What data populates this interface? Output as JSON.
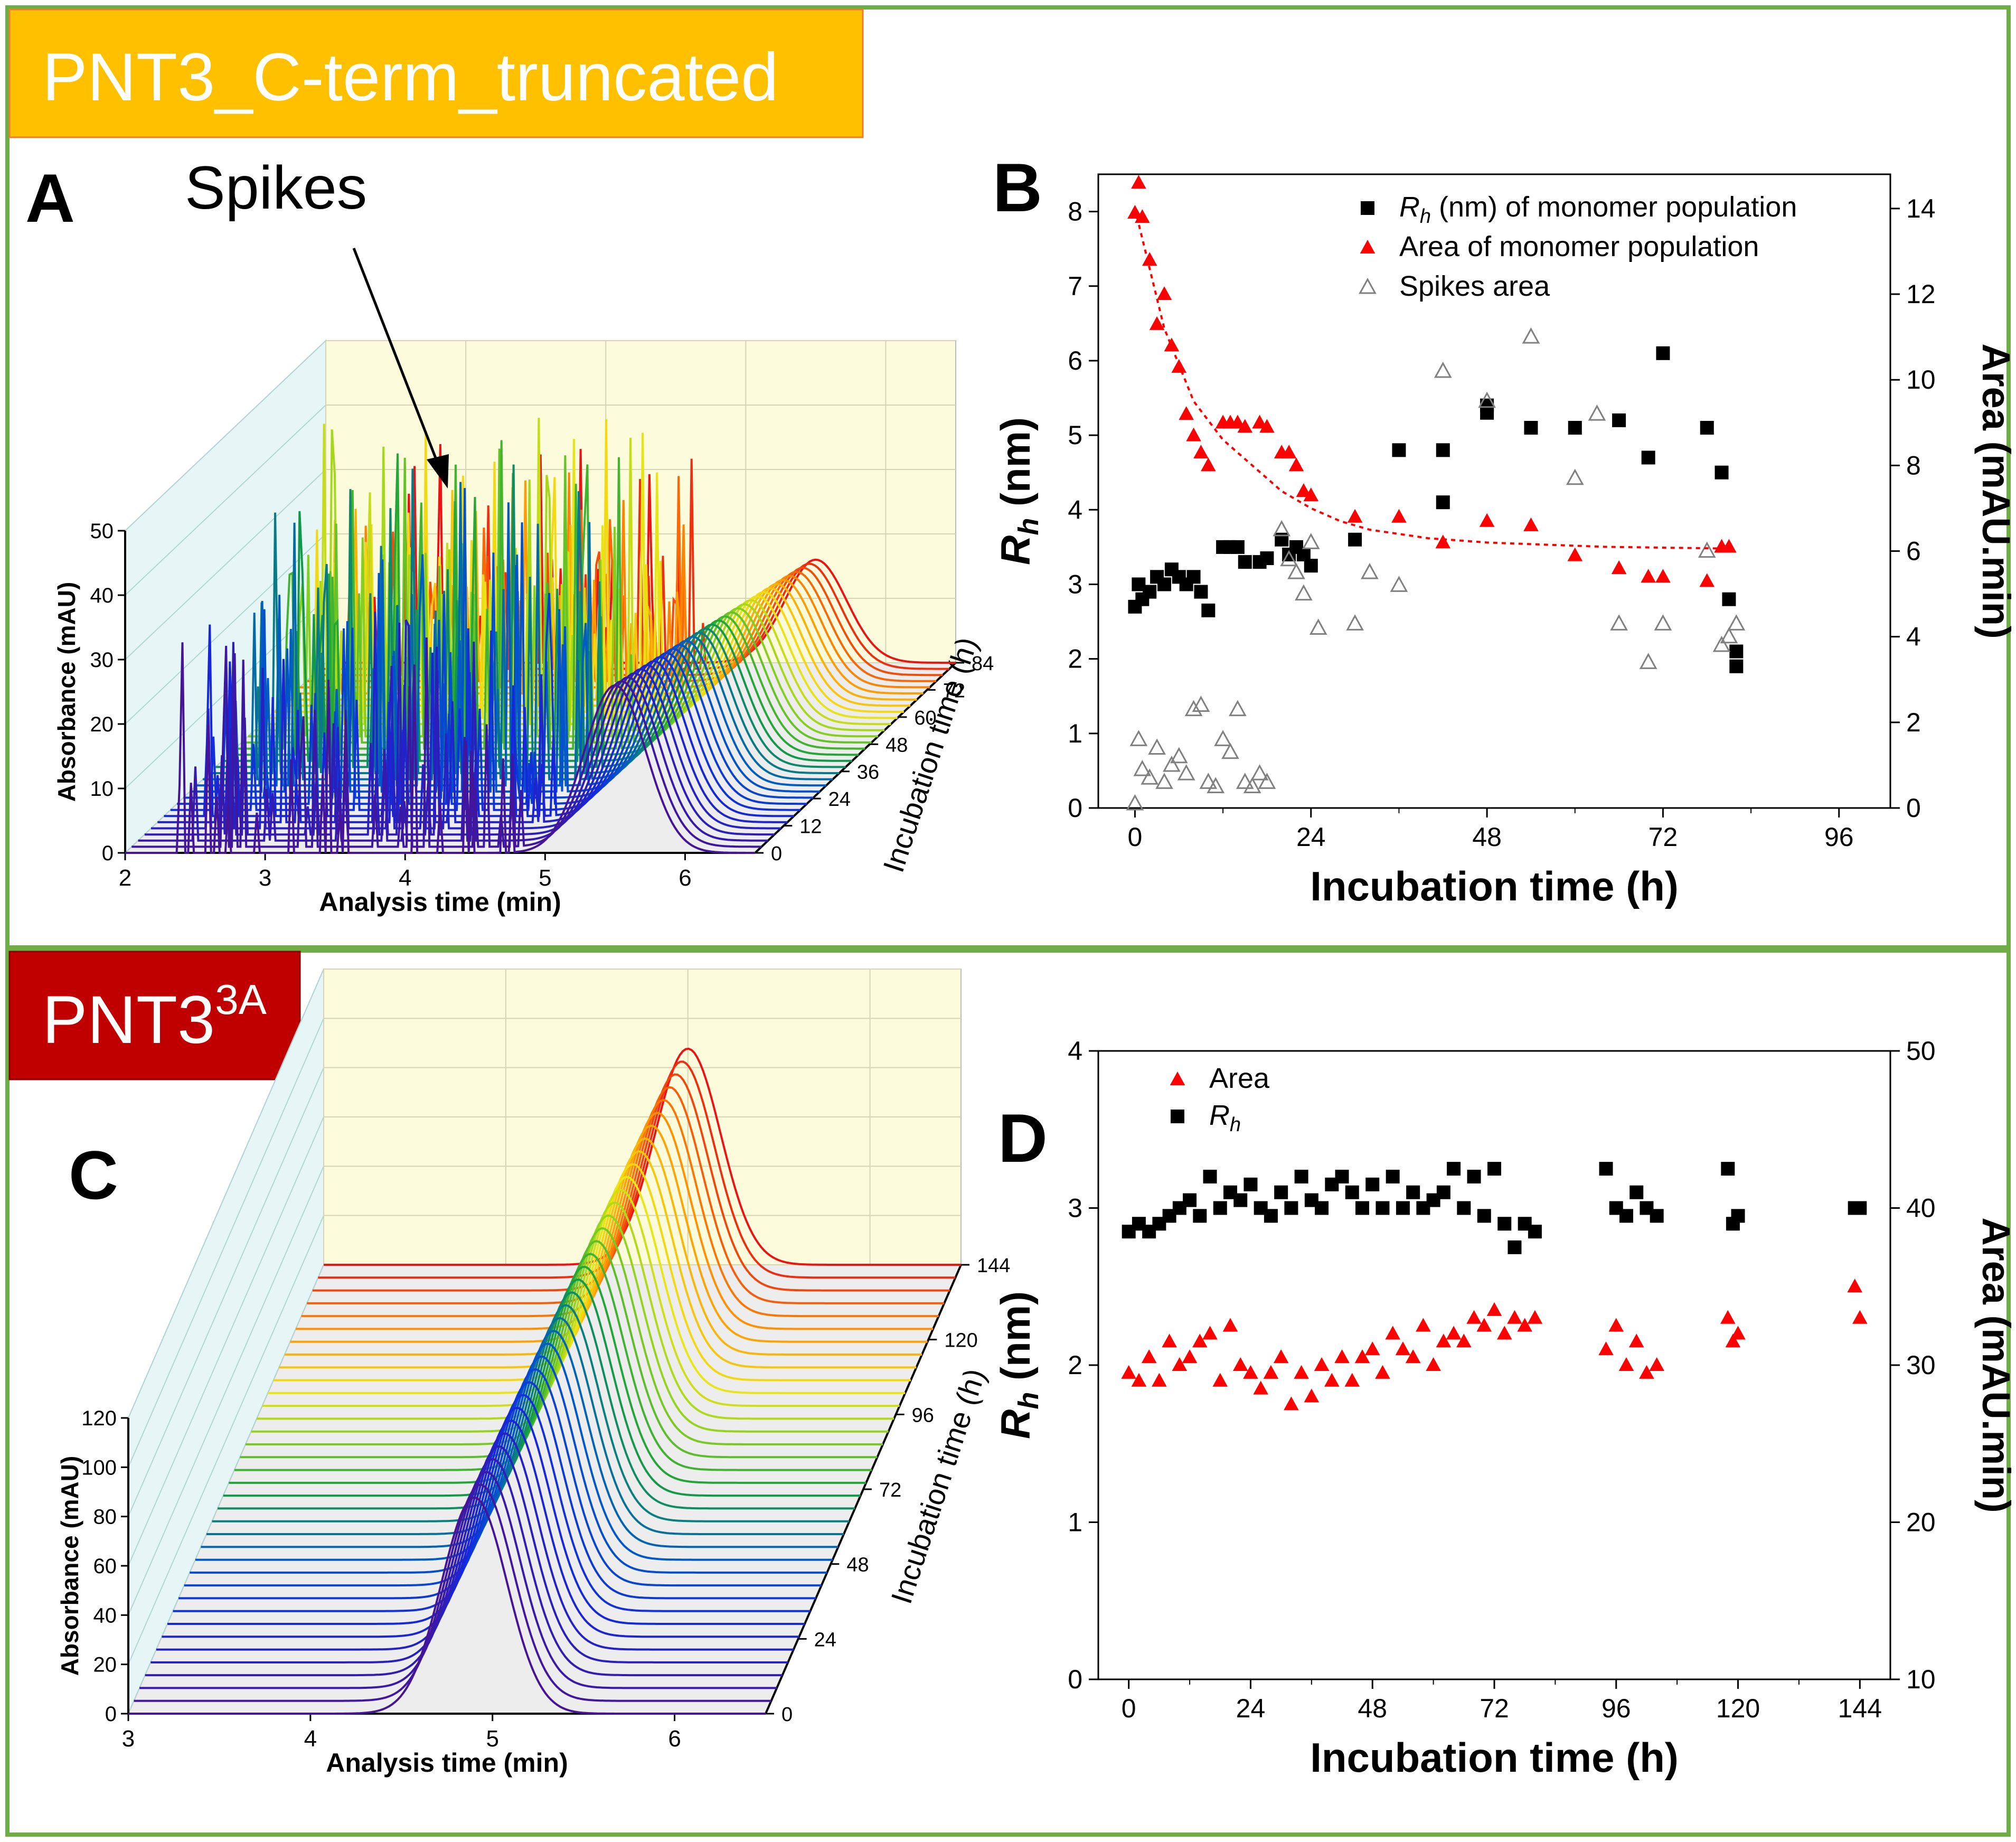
{
  "panels": {
    "top_label": "PNT3_C-term_truncated",
    "bottom_label_main": "PNT3",
    "bottom_label_sup": "3A",
    "colors": {
      "top_label_bg": "#FFC000",
      "bottom_label_bg": "#C00000",
      "frame": "#70AD47",
      "top_label_text": "#ffffff",
      "bottom_label_text": "#ffffff"
    }
  },
  "chart_data": [
    {
      "panel": "A",
      "type": "waterfall",
      "letter": "A",
      "annotation": "Spikes",
      "xlabel": "Analysis time (min)",
      "ylabel": "Absorbance (mAU)",
      "zlabel": "Incubation time (h)",
      "x_ticks": [
        "2",
        "3",
        "4",
        "5",
        "6"
      ],
      "y_ticks": [
        "0",
        "10",
        "20",
        "30",
        "40",
        "50"
      ],
      "z_ticks": [
        "0",
        "12",
        "24",
        "36",
        "48",
        "60",
        "72",
        "84"
      ],
      "xlim": [
        2,
        6.5
      ],
      "ylim": [
        0,
        50
      ],
      "zlim": [
        0,
        84
      ],
      "n_traces": 32,
      "peak_x_min": 5.5,
      "peak_height_mAU": 26,
      "peak_height_late_mAU": 16
    },
    {
      "panel": "B",
      "type": "scatter",
      "letter": "B",
      "xlabel": "Incubation time (h)",
      "ylabel": "R_h (nm)",
      "ylabel_main": "R",
      "ylabel_sub": "h",
      "ylabel_unit": " (nm)",
      "y2label": "Area (mAU.min)",
      "x_ticks": [
        "0",
        "24",
        "48",
        "72",
        "96"
      ],
      "y_ticks": [
        "0",
        "1",
        "2",
        "3",
        "4",
        "5",
        "6",
        "7",
        "8"
      ],
      "y2_ticks": [
        "0",
        "2",
        "4",
        "6",
        "8",
        "10",
        "12",
        "14"
      ],
      "xlim": [
        -5,
        103
      ],
      "ylim": [
        0,
        8.5
      ],
      "y2lim": [
        0,
        14.8
      ],
      "legend": [
        {
          "prefix": "R",
          "sub": "h",
          "suffix": " (nm) of monomer population",
          "marker": "square",
          "color": "#000000"
        },
        {
          "prefix": "Area of monomer population",
          "sub": "",
          "suffix": "",
          "marker": "triangle",
          "color": "#FF0000"
        },
        {
          "prefix": "Spikes area",
          "sub": "",
          "suffix": "",
          "marker": "triangle-open",
          "color": "#808080"
        }
      ],
      "series": [
        {
          "name": "Rh (nm) of monomer population",
          "axis": "left",
          "color": "#000000",
          "marker": "square",
          "x": [
            0,
            0.5,
            1,
            2,
            3,
            4,
            5,
            6,
            7,
            8,
            9,
            10,
            12,
            13,
            14,
            15,
            17,
            18,
            20,
            21,
            22,
            23,
            24,
            30,
            36,
            42,
            42,
            48,
            48,
            54,
            60,
            66,
            70,
            72,
            78,
            80,
            81,
            82,
            82
          ],
          "y": [
            2.7,
            3.0,
            2.8,
            2.9,
            3.1,
            3.0,
            3.2,
            3.1,
            3.0,
            3.1,
            2.9,
            2.65,
            3.5,
            3.5,
            3.5,
            3.3,
            3.3,
            3.35,
            3.6,
            3.4,
            3.5,
            3.4,
            3.25,
            3.6,
            4.8,
            4.1,
            4.8,
            5.4,
            5.3,
            5.1,
            5.1,
            5.2,
            4.7,
            6.1,
            5.1,
            4.5,
            2.8,
            1.9,
            2.1
          ]
        },
        {
          "name": "Area of monomer population",
          "axis": "right",
          "color": "#FF0000",
          "marker": "triangle",
          "x": [
            0,
            0.5,
            1,
            2,
            3,
            4,
            5,
            6,
            7,
            8,
            9,
            10,
            12,
            13,
            14,
            15,
            17,
            18,
            20,
            21,
            22,
            23,
            24,
            30,
            36,
            42,
            48,
            54,
            60,
            66,
            70,
            72,
            78,
            80,
            81
          ],
          "y": [
            13.9,
            14.6,
            13.8,
            12.8,
            11.3,
            12.0,
            10.8,
            10.3,
            9.2,
            8.7,
            8.3,
            8.0,
            9.0,
            9.0,
            9.0,
            8.9,
            9.0,
            8.9,
            8.3,
            8.3,
            8.0,
            7.4,
            7.3,
            6.8,
            6.8,
            6.2,
            6.7,
            6.6,
            5.9,
            5.6,
            5.4,
            5.4,
            5.3,
            6.1,
            6.1
          ]
        },
        {
          "name": "Spikes area",
          "axis": "right",
          "color": "#808080",
          "marker": "triangle-open",
          "x": [
            0,
            0.5,
            1,
            2,
            3,
            4,
            5,
            6,
            7,
            8,
            9,
            10,
            11,
            12,
            13,
            14,
            15,
            16,
            17,
            18,
            20,
            21,
            22,
            23,
            24,
            25,
            30,
            32,
            36,
            42,
            48,
            54,
            60,
            63,
            66,
            70,
            72,
            78,
            80,
            81,
            82
          ],
          "y": [
            0.1,
            1.6,
            0.9,
            0.7,
            1.4,
            0.6,
            1.0,
            1.2,
            0.8,
            2.3,
            2.4,
            0.6,
            0.5,
            1.6,
            1.3,
            2.3,
            0.6,
            0.5,
            0.8,
            0.6,
            6.5,
            5.8,
            5.5,
            5.0,
            6.2,
            4.2,
            4.3,
            5.5,
            5.2,
            10.2,
            9.5,
            11.0,
            7.7,
            9.2,
            4.3,
            3.4,
            4.3,
            6.0,
            3.8,
            4.0,
            4.3
          ]
        },
        {
          "name": "Fit (dotted)",
          "axis": "right",
          "color": "#FF0000",
          "marker": "line",
          "x": [
            0,
            4,
            8,
            12,
            16,
            20,
            24,
            28,
            32,
            36,
            40,
            44,
            48,
            56,
            64,
            72,
            80,
            82
          ],
          "y": [
            14.0,
            11.2,
            9.5,
            8.6,
            8.0,
            7.4,
            7.0,
            6.7,
            6.5,
            6.4,
            6.3,
            6.25,
            6.2,
            6.15,
            6.1,
            6.08,
            6.06,
            6.05
          ]
        }
      ]
    },
    {
      "panel": "C",
      "type": "waterfall",
      "letter": "C",
      "xlabel": "Analysis time (min)",
      "ylabel": "Absorbance (mAU)",
      "zlabel": "Incubation time (h)",
      "x_ticks": [
        "3",
        "4",
        "5",
        "6"
      ],
      "y_ticks": [
        "0",
        "20",
        "40",
        "60",
        "80",
        "100",
        "120"
      ],
      "z_ticks": [
        "0",
        "24",
        "48",
        "72",
        "96",
        "120",
        "144"
      ],
      "xlim": [
        3,
        6.5
      ],
      "ylim": [
        0,
        130
      ],
      "zlim": [
        0,
        144
      ],
      "n_traces": 36,
      "peak_x_min": 5.0,
      "peak_height_mAU": 95
    },
    {
      "panel": "D",
      "type": "scatter",
      "letter": "D",
      "xlabel": "Incubation time (h)",
      "ylabel": "R_h (nm)",
      "ylabel_main": "R",
      "ylabel_sub": "h",
      "ylabel_unit": " (nm)",
      "y2label": "Area (mAU.min)",
      "x_ticks": [
        "0",
        "24",
        "48",
        "72",
        "96",
        "120",
        "144"
      ],
      "y_ticks": [
        "0",
        "1",
        "2",
        "3",
        "4"
      ],
      "y2_ticks": [
        "10",
        "20",
        "30",
        "40",
        "50"
      ],
      "xlim": [
        -6,
        150
      ],
      "ylim": [
        0,
        4
      ],
      "y2lim": [
        10,
        50
      ],
      "legend": [
        {
          "prefix": "Area",
          "sub": "",
          "suffix": "",
          "marker": "triangle",
          "color": "#FF0000"
        },
        {
          "prefix": "R",
          "sub": "h",
          "suffix": "",
          "marker": "square",
          "color": "#000000"
        }
      ],
      "series": [
        {
          "name": "Area",
          "axis": "right",
          "color": "#FF0000",
          "marker": "triangle",
          "x": [
            0,
            2,
            4,
            6,
            8,
            10,
            12,
            14,
            16,
            18,
            20,
            22,
            24,
            26,
            28,
            30,
            32,
            34,
            36,
            38,
            40,
            42,
            44,
            46,
            48,
            50,
            52,
            54,
            56,
            58,
            60,
            62,
            64,
            66,
            68,
            70,
            72,
            74,
            76,
            78,
            80,
            94,
            96,
            98,
            100,
            102,
            104,
            118,
            119,
            120,
            143,
            144
          ],
          "y": [
            29.5,
            29.0,
            30.5,
            29.0,
            31.5,
            30.0,
            30.5,
            31.5,
            32.0,
            29.0,
            32.5,
            30.0,
            29.5,
            28.5,
            29.5,
            30.5,
            27.5,
            29.5,
            28.0,
            30.0,
            29.0,
            30.5,
            29.0,
            30.5,
            31.0,
            29.5,
            32.0,
            31.0,
            30.5,
            32.5,
            30.0,
            31.5,
            32.0,
            31.5,
            33.0,
            32.5,
            33.5,
            32.0,
            33.0,
            32.5,
            33.0,
            31.0,
            32.5,
            30.0,
            31.5,
            29.5,
            30.0,
            33.0,
            31.5,
            32.0,
            35.0,
            33.0
          ]
        },
        {
          "name": "Rh",
          "axis": "left",
          "color": "#000000",
          "marker": "square",
          "x": [
            0,
            2,
            4,
            6,
            8,
            10,
            12,
            14,
            16,
            18,
            20,
            22,
            24,
            26,
            28,
            30,
            32,
            34,
            36,
            38,
            40,
            42,
            44,
            46,
            48,
            50,
            52,
            54,
            56,
            58,
            60,
            62,
            64,
            66,
            68,
            70,
            72,
            74,
            76,
            78,
            80,
            94,
            96,
            98,
            100,
            102,
            104,
            118,
            119,
            120,
            143,
            144
          ],
          "y": [
            2.85,
            2.9,
            2.85,
            2.9,
            2.95,
            3.0,
            3.05,
            2.95,
            3.2,
            3.0,
            3.1,
            3.05,
            3.15,
            3.0,
            2.95,
            3.1,
            3.0,
            3.2,
            3.05,
            3.0,
            3.15,
            3.2,
            3.1,
            3.0,
            3.15,
            3.0,
            3.2,
            3.0,
            3.1,
            3.0,
            3.05,
            3.1,
            3.25,
            3.0,
            3.2,
            2.95,
            3.25,
            2.9,
            2.75,
            2.9,
            2.85,
            3.25,
            3.0,
            2.95,
            3.1,
            3.0,
            2.95,
            3.25,
            2.9,
            2.95,
            3.0,
            3.0
          ]
        }
      ]
    }
  ]
}
